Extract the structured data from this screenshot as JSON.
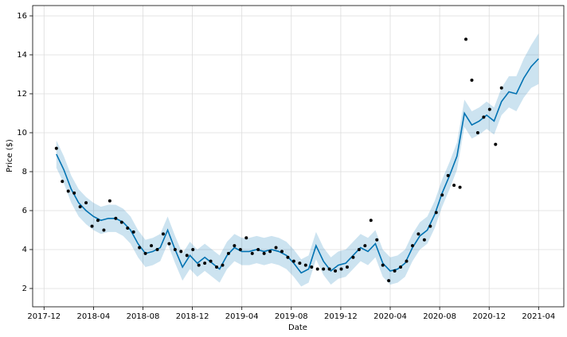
{
  "chart_data": {
    "type": "forecast",
    "xlabel": "Date",
    "ylabel": "Price ($)",
    "xlim": [
      2017.84,
      2021.42
    ],
    "ylim": [
      1.06,
      16.53
    ],
    "xticks": [
      {
        "value": 2017.9167,
        "label": "2017-12"
      },
      {
        "value": 2018.25,
        "label": "2018-04"
      },
      {
        "value": 2018.5833,
        "label": "2018-08"
      },
      {
        "value": 2018.9167,
        "label": "2018-12"
      },
      {
        "value": 2019.25,
        "label": "2019-04"
      },
      {
        "value": 2019.5833,
        "label": "2019-08"
      },
      {
        "value": 2019.9167,
        "label": "2019-12"
      },
      {
        "value": 2020.25,
        "label": "2020-04"
      },
      {
        "value": 2020.5833,
        "label": "2020-08"
      },
      {
        "value": 2020.9167,
        "label": "2020-12"
      },
      {
        "value": 2021.25,
        "label": "2021-04"
      }
    ],
    "yticks": [
      2,
      4,
      6,
      8,
      10,
      12,
      14,
      16
    ],
    "grid": true,
    "band": {
      "color": "#0072b2",
      "x": [
        2018,
        2018.05,
        2018.1,
        2018.15,
        2018.2,
        2018.25,
        2018.3,
        2018.35,
        2018.4,
        2018.45,
        2018.5,
        2018.55,
        2018.6,
        2018.65,
        2018.7,
        2018.75,
        2018.8,
        2018.85,
        2018.9,
        2018.95,
        2019,
        2019.05,
        2019.1,
        2019.15,
        2019.2,
        2019.25,
        2019.3,
        2019.35,
        2019.4,
        2019.45,
        2019.5,
        2019.55,
        2019.6,
        2019.65,
        2019.7,
        2019.75,
        2019.8,
        2019.85,
        2019.9,
        2019.95,
        2020,
        2020.05,
        2020.1,
        2020.15,
        2020.2,
        2020.25,
        2020.3,
        2020.35,
        2020.4,
        2020.45,
        2020.5,
        2020.55,
        2020.6,
        2020.65,
        2020.7,
        2020.75,
        2020.8,
        2020.85,
        2020.9,
        2020.95,
        2021,
        2021.05,
        2021.1,
        2021.15,
        2021.2,
        2021.25
      ],
      "lower": [
        8.2,
        7.4,
        6.4,
        5.7,
        5.3,
        5.0,
        4.8,
        4.9,
        4.9,
        4.7,
        4.3,
        3.6,
        3.1,
        3.2,
        3.4,
        4.3,
        3.3,
        2.4,
        3.0,
        2.6,
        2.9,
        2.6,
        2.3,
        3.0,
        3.4,
        3.2,
        3.2,
        3.3,
        3.2,
        3.3,
        3.2,
        3.0,
        2.6,
        2.1,
        2.3,
        3.5,
        2.7,
        2.2,
        2.5,
        2.6,
        3.0,
        3.4,
        3.2,
        3.6,
        2.6,
        2.2,
        2.3,
        2.6,
        3.4,
        4.0,
        4.3,
        5.1,
        6.2,
        7.1,
        8.1,
        10.3,
        9.7,
        9.9,
        10.2,
        9.9,
        10.9,
        11.3,
        11.1,
        11.8,
        12.3,
        12.5
      ],
      "upper": [
        9.6,
        8.8,
        7.8,
        7.1,
        6.7,
        6.4,
        6.2,
        6.3,
        6.3,
        6.1,
        5.7,
        5.0,
        4.5,
        4.6,
        4.8,
        5.7,
        4.7,
        3.8,
        4.4,
        4.0,
        4.3,
        4.0,
        3.7,
        4.4,
        4.8,
        4.6,
        4.6,
        4.7,
        4.6,
        4.7,
        4.6,
        4.4,
        4.0,
        3.5,
        3.7,
        4.9,
        4.1,
        3.6,
        3.9,
        4.0,
        4.4,
        4.8,
        4.6,
        5.0,
        4.0,
        3.6,
        3.7,
        4.0,
        4.8,
        5.4,
        5.7,
        6.5,
        7.6,
        8.5,
        9.5,
        11.7,
        11.1,
        11.3,
        11.6,
        11.3,
        12.3,
        12.9,
        12.9,
        13.8,
        14.5,
        15.1
      ]
    },
    "forecast": {
      "color": "#0072b2",
      "x": [
        2018,
        2018.05,
        2018.1,
        2018.15,
        2018.2,
        2018.25,
        2018.3,
        2018.35,
        2018.4,
        2018.45,
        2018.5,
        2018.55,
        2018.6,
        2018.65,
        2018.7,
        2018.75,
        2018.8,
        2018.85,
        2018.9,
        2018.95,
        2019,
        2019.05,
        2019.1,
        2019.15,
        2019.2,
        2019.25,
        2019.3,
        2019.35,
        2019.4,
        2019.45,
        2019.5,
        2019.55,
        2019.6,
        2019.65,
        2019.7,
        2019.75,
        2019.8,
        2019.85,
        2019.9,
        2019.95,
        2020,
        2020.05,
        2020.1,
        2020.15,
        2020.2,
        2020.25,
        2020.3,
        2020.35,
        2020.4,
        2020.45,
        2020.5,
        2020.55,
        2020.6,
        2020.65,
        2020.7,
        2020.75,
        2020.8,
        2020.85,
        2020.9,
        2020.95,
        2021,
        2021.05,
        2021.1,
        2021.15,
        2021.2,
        2021.25
      ],
      "values": [
        8.9,
        8.1,
        7.1,
        6.4,
        6.0,
        5.7,
        5.5,
        5.6,
        5.6,
        5.4,
        5.0,
        4.3,
        3.8,
        3.9,
        4.1,
        5.0,
        4.0,
        3.1,
        3.7,
        3.3,
        3.6,
        3.3,
        3.0,
        3.7,
        4.1,
        3.9,
        3.9,
        4.0,
        3.9,
        4.0,
        3.9,
        3.7,
        3.3,
        2.8,
        3.0,
        4.2,
        3.4,
        2.9,
        3.2,
        3.3,
        3.7,
        4.1,
        3.9,
        4.3,
        3.3,
        2.9,
        3.0,
        3.3,
        4.1,
        4.7,
        5.0,
        5.8,
        6.9,
        7.8,
        8.8,
        11.0,
        10.4,
        10.6,
        10.9,
        10.6,
        11.6,
        12.1,
        12.0,
        12.8,
        13.4,
        13.8
      ]
    },
    "observed": {
      "color": "#000000",
      "x": [
        2018,
        2018.04,
        2018.08,
        2018.12,
        2018.16,
        2018.2,
        2018.24,
        2018.28,
        2018.32,
        2018.36,
        2018.4,
        2018.44,
        2018.48,
        2018.52,
        2018.56,
        2018.6,
        2018.64,
        2018.68,
        2018.72,
        2018.76,
        2018.8,
        2018.84,
        2018.88,
        2018.92,
        2018.96,
        2019,
        2019.04,
        2019.08,
        2019.12,
        2019.16,
        2019.2,
        2019.24,
        2019.28,
        2019.32,
        2019.36,
        2019.4,
        2019.44,
        2019.48,
        2019.52,
        2019.56,
        2019.6,
        2019.64,
        2019.68,
        2019.72,
        2019.76,
        2019.8,
        2019.84,
        2019.88,
        2019.92,
        2019.96,
        2020,
        2020.04,
        2020.08,
        2020.12,
        2020.16,
        2020.2,
        2020.24,
        2020.28,
        2020.32,
        2020.36,
        2020.4,
        2020.44,
        2020.48,
        2020.52,
        2020.56,
        2020.6,
        2020.64,
        2020.68,
        2020.72,
        2020.76,
        2020.8,
        2020.84,
        2020.88,
        2020.92,
        2020.96,
        2021
      ],
      "values": [
        9.2,
        7.5,
        7.0,
        6.9,
        6.2,
        6.4,
        5.2,
        5.5,
        5.0,
        6.5,
        5.6,
        5.4,
        5.1,
        4.9,
        4.1,
        3.8,
        4.2,
        4.0,
        4.8,
        4.3,
        4.0,
        3.9,
        3.7,
        4.0,
        3.2,
        3.3,
        3.4,
        3.1,
        3.2,
        3.8,
        4.2,
        4.0,
        4.6,
        3.8,
        4.0,
        3.8,
        3.9,
        4.1,
        3.9,
        3.6,
        3.4,
        3.3,
        3.2,
        3.1,
        3.0,
        3.0,
        3.0,
        2.9,
        3.0,
        3.1,
        3.6,
        4.0,
        4.2,
        5.5,
        4.5,
        3.2,
        2.4,
        2.9,
        3.1,
        3.4,
        4.2,
        4.8,
        4.5,
        5.2,
        5.9,
        6.8,
        7.8,
        7.3,
        7.2,
        14.8,
        12.7,
        10.0,
        10.8,
        11.2,
        9.4,
        12.3
      ]
    }
  }
}
